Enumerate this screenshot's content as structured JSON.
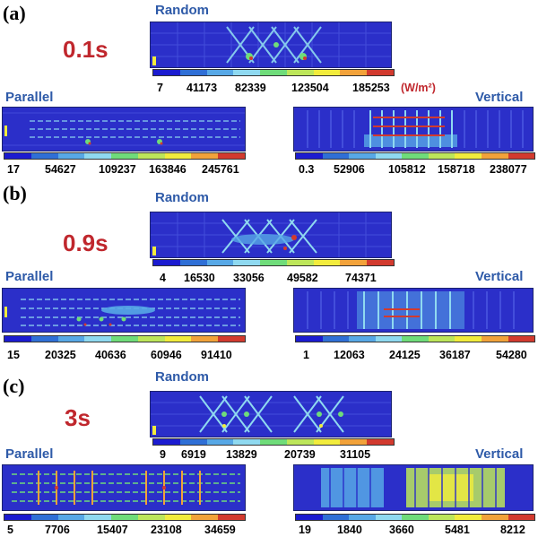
{
  "panels": [
    {
      "label": "(a)",
      "time": "0.1s",
      "random": {
        "title": "Random",
        "ticks": [
          "7",
          "41173",
          "82339",
          "123504",
          "185253"
        ],
        "unit": "(W/m²)"
      },
      "parallel": {
        "title": "Parallel",
        "ticks": [
          "17",
          "54627",
          "109237",
          "163846",
          "245761"
        ]
      },
      "vertical": {
        "title": "Vertical",
        "ticks": [
          "0.3",
          "52906",
          "105812",
          "158718",
          "238077"
        ]
      }
    },
    {
      "label": "(b)",
      "time": "0.9s",
      "random": {
        "title": "Random",
        "ticks": [
          "4",
          "16530",
          "33056",
          "49582",
          "74371"
        ]
      },
      "parallel": {
        "title": "Parallel",
        "ticks": [
          "15",
          "20325",
          "40636",
          "60946",
          "91410"
        ]
      },
      "vertical": {
        "title": "Vertical",
        "ticks": [
          "1",
          "12063",
          "24125",
          "36187",
          "54280"
        ]
      }
    },
    {
      "label": "(c)",
      "time": "3s",
      "random": {
        "title": "Random",
        "ticks": [
          "9",
          "6919",
          "13829",
          "20739",
          "31105"
        ]
      },
      "parallel": {
        "title": "Parallel",
        "ticks": [
          "5",
          "7706",
          "15407",
          "23108",
          "34659"
        ]
      },
      "vertical": {
        "title": "Vertical",
        "ticks": [
          "19",
          "1840",
          "3660",
          "5481",
          "8212"
        ]
      }
    }
  ],
  "colorbar": [
    "#1b1bd0",
    "#2f6fd6",
    "#57a8e6",
    "#8fd9f0",
    "#6fdc7a",
    "#bde65a",
    "#f2ec3c",
    "#f2a23a",
    "#d23a2e"
  ],
  "field_colors": {
    "background": "#2b2fc9",
    "grid": "#4a56e0",
    "hot": "#d6303a",
    "warm": "#f0e040",
    "mid": "#66e0a0",
    "cool": "#6fd0f0"
  }
}
